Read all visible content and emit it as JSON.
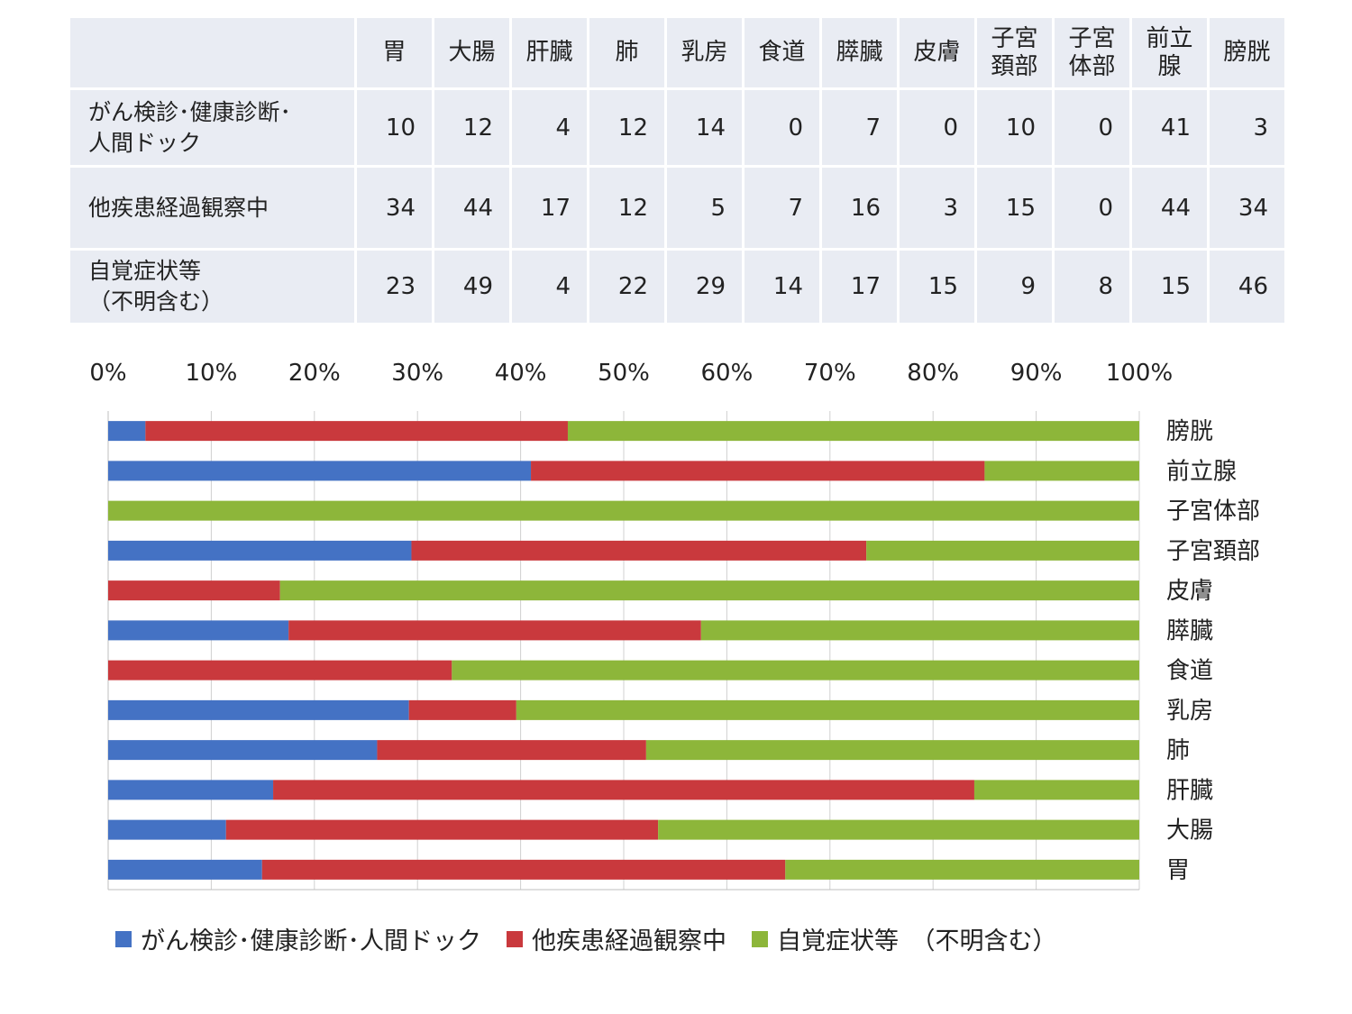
{
  "table": {
    "columns": [
      "胃",
      "大腸",
      "肝臓",
      "肺",
      "乳房",
      "食道",
      "膵臓",
      "皮膚",
      "子宮\n頚部",
      "子宮\n体部",
      "前立\n腺",
      "膀胱"
    ],
    "rows": [
      {
        "label": "がん検診･健康診断･\n人間ドック",
        "values": [
          "10",
          "12",
          "4",
          "12",
          "14",
          "0",
          "7",
          "0",
          "10",
          "0",
          "41",
          "3"
        ]
      },
      {
        "label": "他疾患経過観察中",
        "values": [
          "34",
          "44",
          "17",
          "12",
          "5",
          "7",
          "16",
          "3",
          "15",
          "0",
          "44",
          "34"
        ]
      },
      {
        "label": "自覚症状等\n（不明含む）",
        "values": [
          "23",
          "49",
          "4",
          "22",
          "29",
          "14",
          "17",
          "15",
          "9",
          "8",
          "15",
          "46"
        ]
      }
    ]
  },
  "chart_data": {
    "type": "bar",
    "orientation": "horizontal",
    "stacking": "percent",
    "categories": [
      "胃",
      "大腸",
      "肝臓",
      "肺",
      "乳房",
      "食道",
      "膵臓",
      "皮膚",
      "子宮頚部",
      "子宮体部",
      "前立腺",
      "膀胱"
    ],
    "category_order": "bottom-to-top",
    "series": [
      {
        "name": "がん検診･健康診断･人間ドック",
        "color": "#4472c4",
        "values": [
          10,
          12,
          4,
          12,
          14,
          0,
          7,
          0,
          10,
          0,
          41,
          3
        ]
      },
      {
        "name": "他疾患経過観察中",
        "color": "#c9393d",
        "values": [
          34,
          44,
          17,
          12,
          5,
          7,
          16,
          3,
          15,
          0,
          44,
          34
        ]
      },
      {
        "name": "自覚症状等　（不明含む）",
        "color": "#8db63a",
        "values": [
          23,
          49,
          4,
          22,
          29,
          14,
          17,
          15,
          9,
          8,
          15,
          46
        ]
      }
    ],
    "x_ticks": [
      "0%",
      "10%",
      "20%",
      "30%",
      "40%",
      "50%",
      "60%",
      "70%",
      "80%",
      "90%",
      "100%"
    ],
    "xlim": [
      0,
      100
    ],
    "x_axis_position": "top",
    "y_axis_position": "right",
    "grid": "vertical",
    "legend_position": "bottom",
    "title": "",
    "xlabel": "",
    "ylabel": ""
  }
}
